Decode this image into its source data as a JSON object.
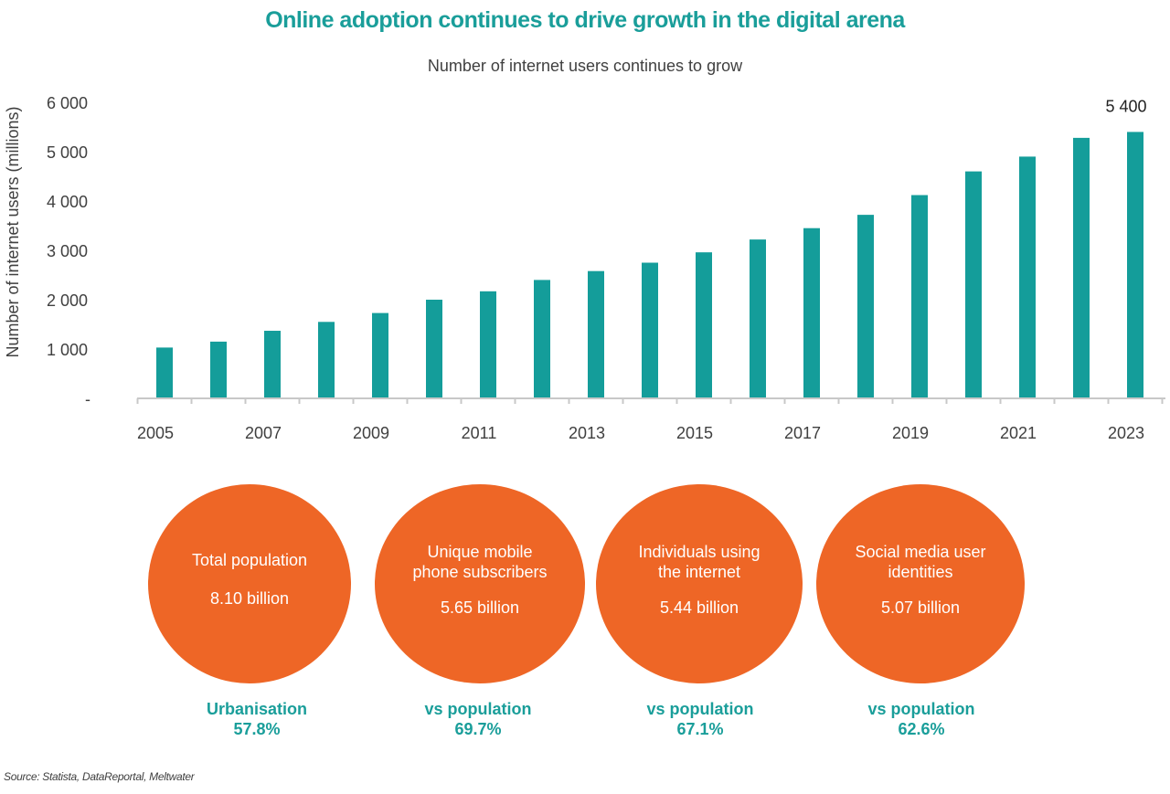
{
  "colors": {
    "accent": "#1a9e9a",
    "bar": "#149d9a",
    "circle": "#ee6626",
    "axis": "#c8c8c8",
    "text": "#404040"
  },
  "title": "Online adoption continues to drive growth in the digital arena",
  "subtitle": "Number of internet users continues to grow",
  "chart_data": {
    "type": "bar",
    "title": "Number of internet users continues to grow",
    "ylabel": "Number of internet users (millions)",
    "xlabel": "",
    "ylim": [
      0,
      6000
    ],
    "yticks": [
      {
        "value": 0,
        "label": "-"
      },
      {
        "value": 1000,
        "label": "1 000"
      },
      {
        "value": 2000,
        "label": "2 000"
      },
      {
        "value": 3000,
        "label": "3 000"
      },
      {
        "value": 4000,
        "label": "4 000"
      },
      {
        "value": 5000,
        "label": "5 000"
      },
      {
        "value": 6000,
        "label": "6 000"
      }
    ],
    "categories": [
      "2005",
      "2006",
      "2007",
      "2008",
      "2009",
      "2010",
      "2011",
      "2012",
      "2013",
      "2014",
      "2015",
      "2016",
      "2017",
      "2018",
      "2019",
      "2020",
      "2021",
      "2022",
      "2023"
    ],
    "x_tick_labels": [
      "2005",
      "2007",
      "2009",
      "2011",
      "2013",
      "2015",
      "2017",
      "2019",
      "2021",
      "2023"
    ],
    "values": [
      1030,
      1150,
      1370,
      1550,
      1730,
      2000,
      2170,
      2400,
      2580,
      2750,
      2960,
      3220,
      3450,
      3720,
      4120,
      4600,
      4900,
      5280,
      5400
    ],
    "data_labels": [
      {
        "category": "2023",
        "text": "5 400"
      }
    ],
    "grid": false
  },
  "stats": [
    {
      "label_lines": [
        "Total population"
      ],
      "value": "8.10 billion",
      "caption": "Urbanisation",
      "pct": "57.8%"
    },
    {
      "label_lines": [
        "Unique mobile",
        "phone subscribers"
      ],
      "value": "5.65 billion",
      "caption": "vs population",
      "pct": "69.7%"
    },
    {
      "label_lines": [
        "Individuals using",
        "the internet"
      ],
      "value": "5.44 billion",
      "caption": "vs population",
      "pct": "67.1%"
    },
    {
      "label_lines": [
        "Social media user",
        "identities"
      ],
      "value": "5.07 billion",
      "caption": "vs population",
      "pct": "62.6%"
    }
  ],
  "source": "Source: Statista, DataReportal, Meltwater"
}
